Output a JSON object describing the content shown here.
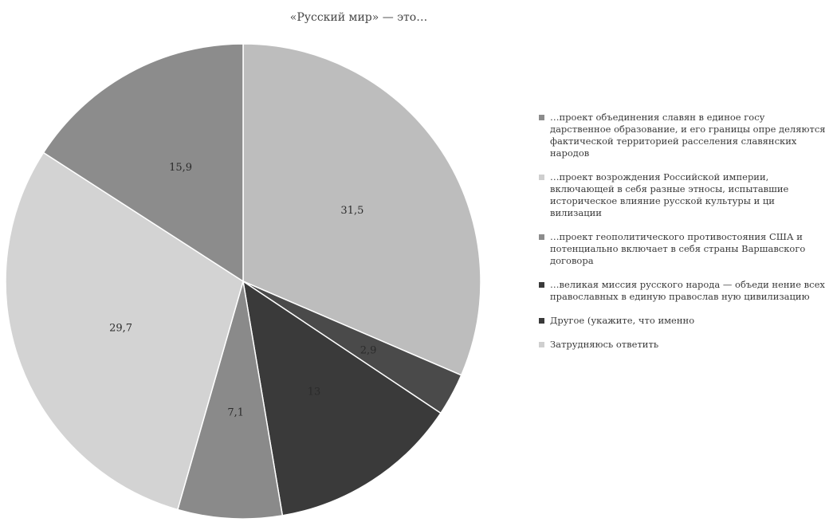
{
  "chart_data": {
    "type": "pie",
    "title": "«Русский мир» — это…",
    "slices": [
      {
        "label": "…проект объединения славян в единое государственное образование, и его границы определяются фактической территорией расселения славянских народов",
        "value": 15.9,
        "display": "15,9",
        "color": "#8c8c8c"
      },
      {
        "label": "…проект возрождения Российской империи, включающей в себя разные этносы, испытавшие историческое влияние русской культуры и цивилизации",
        "value": 31.5,
        "display": "31,5",
        "color": "#bdbdbd"
      },
      {
        "label": "…проект геополитического противостояния США и потенциально включает в себя страны Варшавского договора",
        "value": 2.9,
        "display": "2,9",
        "color": "#4a4a4a"
      },
      {
        "label": "…великая миссия русского народа — объединение всех православных в единую православную цивилизацию",
        "value": 13,
        "display": "13",
        "color": "#3a3a3a"
      },
      {
        "label": "Другое (укажите, что именно",
        "value": 7.1,
        "display": "7,1",
        "color": "#8a8a8a"
      },
      {
        "label": "Затрудняюсь ответить",
        "value": 29.7,
        "display": "29,7",
        "color": "#d3d3d3"
      }
    ],
    "render_order": [
      1,
      2,
      3,
      4,
      5,
      0
    ],
    "legend": {
      "position": "right",
      "items": [
        {
          "text": "…проект объединения славян в единое госу дарственное образование, и его границы опре деляются фактической территорией расселения славянских народов",
          "color": "#8c8c8c"
        },
        {
          "text": "…проект возрождения Российской империи, включающей в себя разные этносы, испытавшие историческое влияние русской культуры и ци вилизации",
          "color": "#cfcfcf"
        },
        {
          "text": "…проект геополитического противостояния США и потенциально включает в себя страны Варшавского договора",
          "color": "#8c8c8c"
        },
        {
          "text": "…великая миссия русского народа — объеди нение всех православных в единую православ ную цивилизацию",
          "color": "#3a3a3a"
        },
        {
          "text": "Другое (укажите, что именно",
          "color": "#3a3a3a"
        },
        {
          "text": "Затрудняюсь ответить",
          "color": "#cfcfcf"
        }
      ]
    }
  }
}
